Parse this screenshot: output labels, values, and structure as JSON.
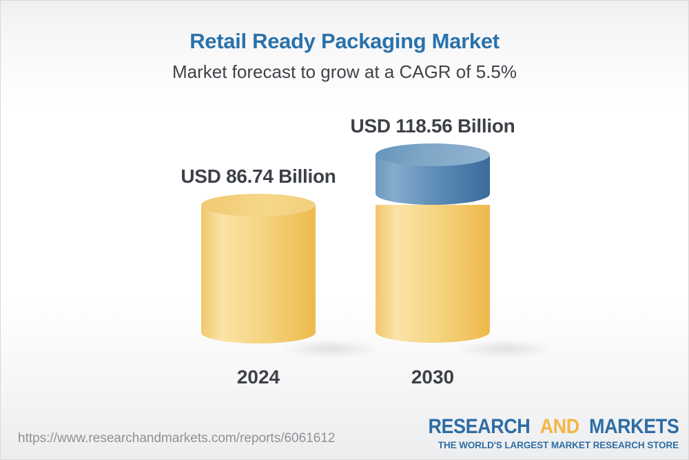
{
  "header": {
    "title": "Retail Ready Packaging Market",
    "subtitle": "Market forecast to grow at a CAGR of 5.5%"
  },
  "chart_data": {
    "type": "bar",
    "subtype": "3d-stacked-cylinder",
    "title": "Retail Ready Packaging Market",
    "subtitle": "Market forecast to grow at a CAGR of 5.5%",
    "cagr_percent": 5.5,
    "unit": "USD Billion",
    "categories": [
      "2024",
      "2030"
    ],
    "values": [
      86.74,
      118.56
    ],
    "value_labels": [
      "USD 86.74 Billion",
      "USD 118.56 Billion"
    ],
    "base_value": 86.74,
    "growth_segment_note": "Blue top slice on 2030 bar = growth above 2024 level (31.82)",
    "legend": "none",
    "grid": false,
    "axes": "none; value labels above bars, year labels below bars",
    "colors": {
      "bar_yellow": "#F5CF7C",
      "bar_blue": "#5D8CB5"
    }
  },
  "footer": {
    "url": "https://www.researchandmarkets.com/reports/6061612",
    "logo": {
      "word_research": "RESEARCH",
      "word_and": "AND",
      "word_markets": "MARKETS",
      "tagline": "THE WORLD'S LARGEST MARKET RESEARCH STORE"
    }
  },
  "colors": {
    "title_blue": "#2A72AB",
    "text_dark": "#3D4147",
    "url_gray": "#8F9193",
    "logo_blue": "#2E6DA4",
    "logo_gold": "#F2B644"
  }
}
